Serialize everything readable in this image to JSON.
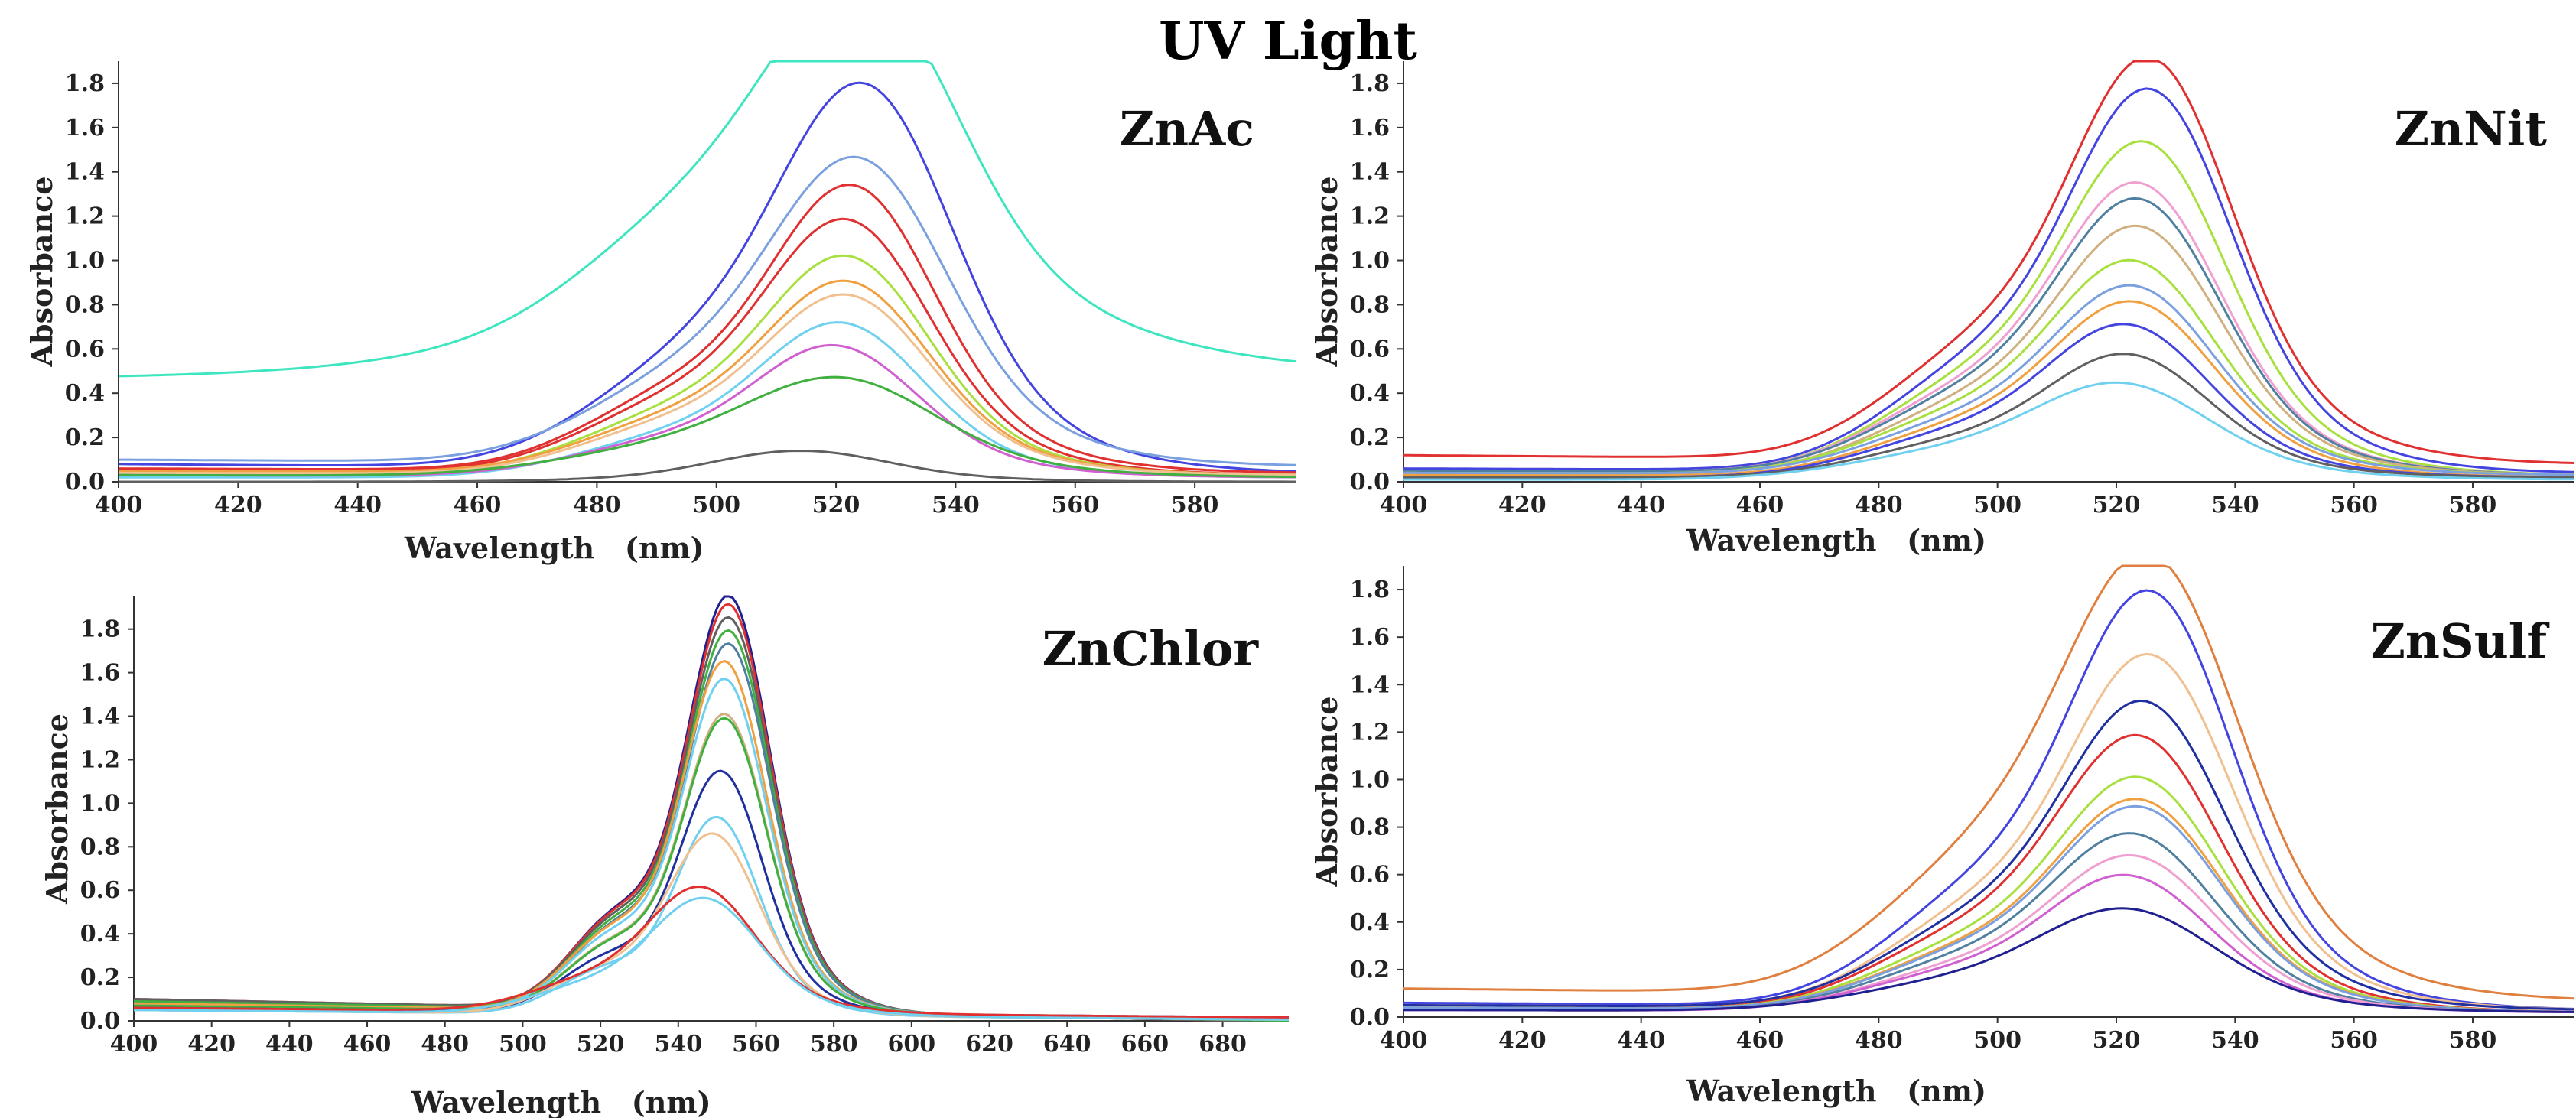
{
  "figure": {
    "title": "UV Light"
  },
  "colors": {
    "cyan": "#3ee6c0",
    "blue": "#4444e0",
    "light_blue": "#7aa0e0",
    "red": "#e03030",
    "yellow_green": "#a8e040",
    "orange": "#f0a040",
    "peach": "#f0c090",
    "light_cyan": "#70d0f0",
    "magenta": "#d060d0",
    "green": "#40b040",
    "gray": "#606060",
    "dark_blue": "#202090",
    "slate": "#5080a0",
    "navy": "#2030a0",
    "pink": "#f0a0d0",
    "tan": "#d0b080",
    "brown_orange": "#e08040"
  },
  "chart_data": [
    {
      "type": "line",
      "title": "ZnAc",
      "xlabel": "Wavelength   (nm)",
      "ylabel": "Absorbance",
      "xlim": [
        400,
        597
      ],
      "ylim": [
        0,
        1.9
      ],
      "x_ticks": [
        400,
        420,
        440,
        460,
        480,
        500,
        520,
        540,
        560,
        580
      ],
      "y_ticks": [
        0.0,
        0.2,
        0.4,
        0.6,
        0.8,
        1.0,
        1.2,
        1.4,
        1.6,
        1.8
      ],
      "x_tick_labels": [
        "400",
        "420",
        "440",
        "460",
        "480",
        "500",
        "520",
        "540",
        "560",
        "580"
      ],
      "y_tick_labels": [
        "0.0",
        "0.2",
        "0.4",
        "0.6",
        "0.8",
        "1.0",
        "1.2",
        "1.4",
        "1.6",
        "1.8"
      ],
      "series": [
        {
          "color": "cyan",
          "peak_x": 525,
          "peak_y": 1.88,
          "base_y": 0.47,
          "end_y": 0.49,
          "sigma": 15,
          "shoulder": 0.52,
          "rise": 0.3
        },
        {
          "color": "blue",
          "peak_x": 525,
          "peak_y": 1.73,
          "base_y": 0.08,
          "end_y": 0.04,
          "sigma": 14,
          "shoulder": 0.45
        },
        {
          "color": "light_blue",
          "peak_x": 524,
          "peak_y": 1.41,
          "base_y": 0.1,
          "end_y": 0.07,
          "sigma": 14,
          "shoulder": 0.45
        },
        {
          "color": "red",
          "peak_x": 523,
          "peak_y": 1.3,
          "base_y": 0.06,
          "end_y": 0.04,
          "sigma": 13,
          "shoulder": 0.45
        },
        {
          "color": "red",
          "peak_x": 522,
          "peak_y": 1.15,
          "base_y": 0.05,
          "end_y": 0.03,
          "sigma": 13,
          "shoulder": 0.45
        },
        {
          "color": "yellow_green",
          "peak_x": 522,
          "peak_y": 0.99,
          "base_y": 0.04,
          "end_y": 0.03,
          "sigma": 13,
          "shoulder": 0.45
        },
        {
          "color": "orange",
          "peak_x": 522,
          "peak_y": 0.88,
          "base_y": 0.05,
          "end_y": 0.03,
          "sigma": 13,
          "shoulder": 0.45
        },
        {
          "color": "peach",
          "peak_x": 522,
          "peak_y": 0.82,
          "base_y": 0.04,
          "end_y": 0.03,
          "sigma": 13,
          "shoulder": 0.45
        },
        {
          "color": "light_cyan",
          "peak_x": 521,
          "peak_y": 0.7,
          "base_y": 0.02,
          "end_y": 0.02,
          "sigma": 13,
          "shoulder": 0.4
        },
        {
          "color": "magenta",
          "peak_x": 520,
          "peak_y": 0.6,
          "base_y": 0.03,
          "end_y": 0.02,
          "sigma": 13,
          "shoulder": 0.4
        },
        {
          "color": "green",
          "peak_x": 521,
          "peak_y": 0.45,
          "base_y": 0.03,
          "end_y": 0.02,
          "sigma": 15,
          "shoulder": 0.45
        },
        {
          "color": "gray",
          "peak_x": 514,
          "peak_y": 0.14,
          "base_y": 0.0,
          "end_y": 0.0,
          "sigma": 14,
          "shoulder": 0.0
        }
      ]
    },
    {
      "type": "line",
      "title": "ZnNit",
      "xlabel": "Wavelength   (nm)",
      "ylabel": "Absorbance",
      "xlim": [
        400,
        597
      ],
      "ylim": [
        0,
        1.9
      ],
      "x_ticks": [
        400,
        420,
        440,
        460,
        480,
        500,
        520,
        540,
        560,
        580
      ],
      "y_ticks": [
        0.0,
        0.2,
        0.4,
        0.6,
        0.8,
        1.0,
        1.2,
        1.4,
        1.6,
        1.8
      ],
      "x_tick_labels": [
        "400",
        "420",
        "440",
        "460",
        "480",
        "500",
        "520",
        "540",
        "560",
        "580"
      ],
      "y_tick_labels": [
        "0.0",
        "0.2",
        "0.4",
        "0.6",
        "0.8",
        "1.0",
        "1.2",
        "1.4",
        "1.6",
        "1.8"
      ],
      "series": [
        {
          "color": "red",
          "peak_x": 526,
          "peak_y": 1.86,
          "base_y": 0.12,
          "end_y": 0.08,
          "sigma": 13,
          "shoulder": 0.45
        },
        {
          "color": "blue",
          "peak_x": 526,
          "peak_y": 1.72,
          "base_y": 0.06,
          "end_y": 0.04,
          "sigma": 13,
          "shoulder": 0.45
        },
        {
          "color": "yellow_green",
          "peak_x": 525,
          "peak_y": 1.49,
          "base_y": 0.05,
          "end_y": 0.03,
          "sigma": 13,
          "shoulder": 0.45
        },
        {
          "color": "pink",
          "peak_x": 524,
          "peak_y": 1.31,
          "base_y": 0.05,
          "end_y": 0.03,
          "sigma": 13,
          "shoulder": 0.45
        },
        {
          "color": "slate",
          "peak_x": 524,
          "peak_y": 1.24,
          "base_y": 0.05,
          "end_y": 0.03,
          "sigma": 13,
          "shoulder": 0.45
        },
        {
          "color": "tan",
          "peak_x": 524,
          "peak_y": 1.12,
          "base_y": 0.04,
          "end_y": 0.03,
          "sigma": 13,
          "shoulder": 0.45
        },
        {
          "color": "yellow_green",
          "peak_x": 523,
          "peak_y": 0.97,
          "base_y": 0.04,
          "end_y": 0.03,
          "sigma": 13,
          "shoulder": 0.45
        },
        {
          "color": "light_blue",
          "peak_x": 523,
          "peak_y": 0.86,
          "base_y": 0.04,
          "end_y": 0.03,
          "sigma": 13,
          "shoulder": 0.45
        },
        {
          "color": "orange",
          "peak_x": 523,
          "peak_y": 0.79,
          "base_y": 0.03,
          "end_y": 0.02,
          "sigma": 13,
          "shoulder": 0.45
        },
        {
          "color": "blue",
          "peak_x": 522,
          "peak_y": 0.69,
          "base_y": 0.02,
          "end_y": 0.02,
          "sigma": 13,
          "shoulder": 0.45
        },
        {
          "color": "gray",
          "peak_x": 522,
          "peak_y": 0.56,
          "base_y": 0.02,
          "end_y": 0.02,
          "sigma": 13,
          "shoulder": 0.45
        },
        {
          "color": "light_cyan",
          "peak_x": 521,
          "peak_y": 0.43,
          "base_y": 0.01,
          "end_y": 0.01,
          "sigma": 14,
          "shoulder": 0.45
        }
      ]
    },
    {
      "type": "line",
      "title": "ZnChlor",
      "xlabel": "Wavelength   (nm)",
      "ylabel": "Absorbance",
      "xlim": [
        400,
        697
      ],
      "ylim": [
        0,
        1.95
      ],
      "x_ticks": [
        400,
        420,
        440,
        460,
        480,
        500,
        520,
        540,
        560,
        580,
        600,
        620,
        640,
        660,
        680
      ],
      "y_ticks": [
        0.0,
        0.2,
        0.4,
        0.6,
        0.8,
        1.0,
        1.2,
        1.4,
        1.6,
        1.8
      ],
      "x_tick_labels": [
        "400",
        "420",
        "440",
        "460",
        "480",
        "500",
        "520",
        "540",
        "560",
        "580",
        "600",
        "620",
        "640",
        "660",
        "680"
      ],
      "y_tick_labels": [
        "0.0",
        "0.2",
        "0.4",
        "0.6",
        "0.8",
        "1.0",
        "1.2",
        "1.4",
        "1.6",
        "1.8"
      ],
      "series": [
        {
          "color": "dark_blue",
          "peak_x": 553,
          "peak_y": 1.94,
          "base_y": 0.09,
          "end_y": 0.03,
          "sigma": 10,
          "shoulder": 0.4
        },
        {
          "color": "red",
          "peak_x": 553,
          "peak_y": 1.9,
          "base_y": 0.1,
          "end_y": 0.03,
          "sigma": 10,
          "shoulder": 0.4
        },
        {
          "color": "gray",
          "peak_x": 553,
          "peak_y": 1.84,
          "base_y": 0.1,
          "end_y": 0.03,
          "sigma": 10,
          "shoulder": 0.4
        },
        {
          "color": "green",
          "peak_x": 553,
          "peak_y": 1.78,
          "base_y": 0.09,
          "end_y": 0.03,
          "sigma": 10,
          "shoulder": 0.4
        },
        {
          "color": "slate",
          "peak_x": 553,
          "peak_y": 1.72,
          "base_y": 0.08,
          "end_y": 0.03,
          "sigma": 10,
          "shoulder": 0.4
        },
        {
          "color": "orange",
          "peak_x": 552,
          "peak_y": 1.64,
          "base_y": 0.08,
          "end_y": 0.03,
          "sigma": 10,
          "shoulder": 0.4
        },
        {
          "color": "light_cyan",
          "peak_x": 552,
          "peak_y": 1.56,
          "base_y": 0.07,
          "end_y": 0.03,
          "sigma": 10,
          "shoulder": 0.4
        },
        {
          "color": "tan",
          "peak_x": 552,
          "peak_y": 1.4,
          "base_y": 0.07,
          "end_y": 0.03,
          "sigma": 10,
          "shoulder": 0.4
        },
        {
          "color": "green",
          "peak_x": 552,
          "peak_y": 1.38,
          "base_y": 0.07,
          "end_y": 0.03,
          "sigma": 10,
          "shoulder": 0.4
        },
        {
          "color": "navy",
          "peak_x": 551,
          "peak_y": 1.14,
          "base_y": 0.06,
          "end_y": 0.03,
          "sigma": 10,
          "shoulder": 0.4
        },
        {
          "color": "light_cyan",
          "peak_x": 550,
          "peak_y": 0.93,
          "base_y": 0.05,
          "end_y": 0.02,
          "sigma": 10,
          "shoulder": 0.4
        },
        {
          "color": "peach",
          "peak_x": 549,
          "peak_y": 0.85,
          "base_y": 0.05,
          "end_y": 0.02,
          "sigma": 11,
          "shoulder": 0.4
        },
        {
          "color": "red",
          "peak_x": 546,
          "peak_y": 0.6,
          "base_y": 0.06,
          "end_y": 0.03,
          "sigma": 13,
          "shoulder": 0.4
        },
        {
          "color": "light_cyan",
          "peak_x": 547,
          "peak_y": 0.55,
          "base_y": 0.05,
          "end_y": 0.02,
          "sigma": 13,
          "shoulder": 0.4
        }
      ]
    },
    {
      "type": "line",
      "title": "ZnSulf",
      "xlabel": "Wavelength   (nm)",
      "ylabel": "Absorbance",
      "xlim": [
        400,
        597
      ],
      "ylim": [
        0,
        1.9
      ],
      "x_ticks": [
        400,
        420,
        440,
        460,
        480,
        500,
        520,
        540,
        560,
        580
      ],
      "y_ticks": [
        0.0,
        0.2,
        0.4,
        0.6,
        0.8,
        1.0,
        1.2,
        1.4,
        1.6,
        1.8
      ],
      "x_tick_labels": [
        "400",
        "420",
        "440",
        "460",
        "480",
        "500",
        "520",
        "540",
        "560",
        "580"
      ],
      "y_tick_labels": [
        "0.0",
        "0.2",
        "0.4",
        "0.6",
        "0.8",
        "1.0",
        "1.2",
        "1.4",
        "1.6",
        "1.8"
      ],
      "series": [
        {
          "color": "brown_orange",
          "peak_x": 526,
          "peak_y": 1.87,
          "base_y": 0.12,
          "end_y": 0.07,
          "sigma": 14,
          "shoulder": 0.5
        },
        {
          "color": "blue",
          "peak_x": 526,
          "peak_y": 1.74,
          "base_y": 0.06,
          "end_y": 0.03,
          "sigma": 13,
          "shoulder": 0.45
        },
        {
          "color": "peach",
          "peak_x": 526,
          "peak_y": 1.48,
          "base_y": 0.05,
          "end_y": 0.03,
          "sigma": 13,
          "shoulder": 0.45
        },
        {
          "color": "navy",
          "peak_x": 525,
          "peak_y": 1.29,
          "base_y": 0.05,
          "end_y": 0.03,
          "sigma": 13,
          "shoulder": 0.45
        },
        {
          "color": "red",
          "peak_x": 524,
          "peak_y": 1.15,
          "base_y": 0.04,
          "end_y": 0.02,
          "sigma": 13,
          "shoulder": 0.45
        },
        {
          "color": "yellow_green",
          "peak_x": 524,
          "peak_y": 0.98,
          "base_y": 0.04,
          "end_y": 0.02,
          "sigma": 13,
          "shoulder": 0.45
        },
        {
          "color": "orange",
          "peak_x": 524,
          "peak_y": 0.89,
          "base_y": 0.04,
          "end_y": 0.02,
          "sigma": 13,
          "shoulder": 0.45
        },
        {
          "color": "light_blue",
          "peak_x": 524,
          "peak_y": 0.86,
          "base_y": 0.04,
          "end_y": 0.02,
          "sigma": 13,
          "shoulder": 0.45
        },
        {
          "color": "slate",
          "peak_x": 523,
          "peak_y": 0.75,
          "base_y": 0.03,
          "end_y": 0.02,
          "sigma": 13,
          "shoulder": 0.45
        },
        {
          "color": "pink",
          "peak_x": 523,
          "peak_y": 0.66,
          "base_y": 0.03,
          "end_y": 0.02,
          "sigma": 13,
          "shoulder": 0.45
        },
        {
          "color": "magenta",
          "peak_x": 522,
          "peak_y": 0.58,
          "base_y": 0.03,
          "end_y": 0.02,
          "sigma": 13,
          "shoulder": 0.45
        },
        {
          "color": "dark_blue",
          "peak_x": 522,
          "peak_y": 0.44,
          "base_y": 0.03,
          "end_y": 0.02,
          "sigma": 14,
          "shoulder": 0.45
        }
      ]
    }
  ]
}
